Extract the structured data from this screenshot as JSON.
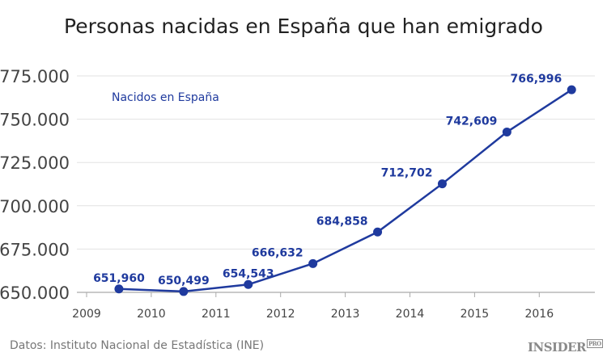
{
  "chart_data": {
    "type": "line",
    "title": "Personas nacidas en España que han emigrado",
    "xlabel": "",
    "ylabel": "",
    "x_tick_labels": [
      "2009",
      "2010",
      "2011",
      "2012",
      "2013",
      "2014",
      "2015",
      "2016"
    ],
    "y_tick_labels": [
      "650.000",
      "675.000",
      "700.000",
      "725.000",
      "750.000",
      "775.000"
    ],
    "y_ticks": [
      650000,
      675000,
      700000,
      725000,
      750000,
      775000
    ],
    "ylim": [
      650000,
      775000
    ],
    "grid": "horizontal",
    "series": [
      {
        "name": "Nacidos en España",
        "color": "#1f3a9e",
        "x": [
          2009,
          2010,
          2011,
          2012,
          2013,
          2014,
          2015,
          2016
        ],
        "values": [
          651960,
          650499,
          654543,
          666632,
          684858,
          712702,
          742609,
          766996
        ],
        "data_labels": [
          "651,960",
          "650,499",
          "654,543",
          "666,632",
          "684,858",
          "712,702",
          "742,609",
          "766,996"
        ]
      }
    ],
    "legend_placement": "top-left",
    "source": "Datos: Instituto Nacional de Estadística (INE)",
    "logo": {
      "text": "INSIDER",
      "badge": "PRO"
    }
  }
}
